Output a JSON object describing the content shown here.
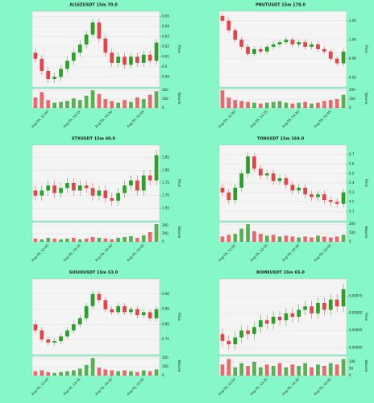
{
  "chart_data": [
    {
      "type": "candlestick",
      "title": "AI16ZUSDT 15m 70.0",
      "ylabel": "Price",
      "volume_label": "Volume",
      "up_color": "#2ca02c",
      "down_color": "#e0474c",
      "grid": true,
      "categories": [
        null,
        null,
        "Aug 05, 12:00",
        null,
        null,
        null,
        null,
        "Aug 05, 13:15",
        null,
        null,
        null,
        null,
        "Aug 05, 14:30",
        null,
        null,
        null,
        null,
        "Aug 05, 15:45",
        null,
        null
      ],
      "ohlc": [
        [
          0.614,
          0.618,
          0.604,
          0.608
        ],
        [
          0.608,
          0.612,
          0.592,
          0.596
        ],
        [
          0.596,
          0.6,
          0.584,
          0.588
        ],
        [
          0.588,
          0.594,
          0.584,
          0.59
        ],
        [
          0.59,
          0.602,
          0.586,
          0.598
        ],
        [
          0.598,
          0.61,
          0.594,
          0.606
        ],
        [
          0.606,
          0.618,
          0.602,
          0.614
        ],
        [
          0.614,
          0.626,
          0.61,
          0.622
        ],
        [
          0.622,
          0.636,
          0.618,
          0.632
        ],
        [
          0.632,
          0.648,
          0.628,
          0.644
        ],
        [
          0.644,
          0.648,
          0.624,
          0.628
        ],
        [
          0.628,
          0.632,
          0.61,
          0.614
        ],
        [
          0.614,
          0.618,
          0.6,
          0.604
        ],
        [
          0.604,
          0.614,
          0.6,
          0.61
        ],
        [
          0.61,
          0.614,
          0.598,
          0.602
        ],
        [
          0.602,
          0.614,
          0.598,
          0.61
        ],
        [
          0.61,
          0.614,
          0.6,
          0.604
        ],
        [
          0.604,
          0.616,
          0.6,
          0.612
        ],
        [
          0.612,
          0.616,
          0.602,
          0.606
        ],
        [
          0.606,
          0.628,
          0.602,
          0.624
        ]
      ],
      "volume": [
        120,
        180,
        90,
        60,
        70,
        80,
        110,
        90,
        140,
        200,
        160,
        100,
        80,
        60,
        90,
        70,
        120,
        100,
        150,
        190
      ],
      "ylim": [
        0.58,
        0.655
      ],
      "yticks": [
        0.59,
        0.6,
        0.61,
        0.62,
        0.63,
        0.64,
        0.65
      ],
      "volume_lim": [
        0,
        220
      ],
      "volume_ticks": [
        0,
        100,
        200
      ]
    },
    {
      "type": "candlestick",
      "title": "PNUTUSDT 15m 178.0",
      "ylabel": "Price",
      "volume_label": "Volume",
      "up_color": "#2ca02c",
      "down_color": "#e0474c",
      "grid": true,
      "categories": [
        null,
        null,
        "Aug 05, 12:00",
        null,
        null,
        null,
        null,
        "Aug 05, 13:15",
        null,
        null,
        null,
        null,
        "Aug 05, 14:30",
        null,
        null,
        null,
        null,
        "Aug 05, 15:45",
        null,
        null
      ],
      "ohlc": [
        [
          1.05,
          1.056,
          1.034,
          1.04
        ],
        [
          1.04,
          1.046,
          1.014,
          1.02
        ],
        [
          1.02,
          1.026,
          0.994,
          1.0
        ],
        [
          1.0,
          1.006,
          0.979,
          0.985
        ],
        [
          0.985,
          0.991,
          0.964,
          0.97
        ],
        [
          0.97,
          0.986,
          0.964,
          0.98
        ],
        [
          0.98,
          0.986,
          0.969,
          0.975
        ],
        [
          0.975,
          0.991,
          0.969,
          0.985
        ],
        [
          0.985,
          0.996,
          0.979,
          0.99
        ],
        [
          0.99,
          1.001,
          0.984,
          0.995
        ],
        [
          0.995,
          1.006,
          0.989,
          1.0
        ],
        [
          1.0,
          1.006,
          0.984,
          0.99
        ],
        [
          0.99,
          1.001,
          0.984,
          0.995
        ],
        [
          0.995,
          1.001,
          0.979,
          0.985
        ],
        [
          0.985,
          0.996,
          0.979,
          0.99
        ],
        [
          0.99,
          0.996,
          0.974,
          0.98
        ],
        [
          0.98,
          0.986,
          0.969,
          0.975
        ],
        [
          0.975,
          0.981,
          0.954,
          0.96
        ],
        [
          0.96,
          0.966,
          0.944,
          0.95
        ],
        [
          0.95,
          0.981,
          0.944,
          0.975
        ]
      ],
      "volume": [
        200,
        120,
        90,
        80,
        70,
        60,
        50,
        60,
        70,
        80,
        60,
        50,
        60,
        70,
        50,
        60,
        80,
        90,
        100,
        150
      ],
      "ylim": [
        0.9,
        1.06
      ],
      "yticks": [
        {
          "value": 0.92,
          "label": "0.92"
        },
        {
          "value": 0.96,
          "label": "0.96"
        },
        {
          "value": 1.0,
          "label": "1.00"
        },
        {
          "value": 1.04,
          "label": "1.04"
        }
      ],
      "volume_lim": [
        0,
        220
      ],
      "volume_ticks": [
        0,
        100,
        200
      ]
    },
    {
      "type": "candlestick",
      "title": "STXUSDT 15m 60.0",
      "ylabel": "Price",
      "volume_label": "Volume",
      "up_color": "#2ca02c",
      "down_color": "#e0474c",
      "grid": true,
      "categories": [
        null,
        null,
        "Aug 05, 12:00",
        null,
        null,
        null,
        null,
        "Aug 05, 13:15",
        null,
        null,
        null,
        null,
        "Aug 05, 14:30",
        null,
        null,
        null,
        null,
        "Aug 05, 15:45",
        null,
        null
      ],
      "ohlc": [
        [
          1.72,
          1.74,
          1.68,
          1.7
        ],
        [
          1.7,
          1.74,
          1.68,
          1.72
        ],
        [
          1.72,
          1.76,
          1.7,
          1.74
        ],
        [
          1.74,
          1.76,
          1.69,
          1.71
        ],
        [
          1.71,
          1.75,
          1.69,
          1.73
        ],
        [
          1.73,
          1.77,
          1.71,
          1.75
        ],
        [
          1.75,
          1.77,
          1.7,
          1.72
        ],
        [
          1.72,
          1.76,
          1.7,
          1.74
        ],
        [
          1.74,
          1.76,
          1.71,
          1.73
        ],
        [
          1.73,
          1.75,
          1.68,
          1.7
        ],
        [
          1.7,
          1.74,
          1.68,
          1.72
        ],
        [
          1.72,
          1.74,
          1.67,
          1.69
        ],
        [
          1.69,
          1.71,
          1.66,
          1.68
        ],
        [
          1.68,
          1.73,
          1.66,
          1.71
        ],
        [
          1.71,
          1.76,
          1.69,
          1.74
        ],
        [
          1.74,
          1.78,
          1.72,
          1.76
        ],
        [
          1.76,
          1.78,
          1.7,
          1.72
        ],
        [
          1.72,
          1.8,
          1.7,
          1.78
        ],
        [
          1.78,
          1.8,
          1.74,
          1.76
        ],
        [
          1.76,
          1.88,
          1.74,
          1.86
        ]
      ],
      "volume": [
        40,
        30,
        50,
        40,
        30,
        40,
        50,
        30,
        40,
        60,
        50,
        40,
        30,
        50,
        60,
        70,
        50,
        80,
        120,
        220
      ],
      "ylim": [
        1.6,
        1.9
      ],
      "yticks": [
        1.65,
        {
          "value": 1.7,
          "label": "1.70"
        },
        1.75,
        {
          "value": 1.8,
          "label": "1.80"
        },
        1.85
      ],
      "volume_lim": [
        0,
        240
      ],
      "volume_ticks": [
        0,
        100,
        200
      ]
    },
    {
      "type": "candlestick",
      "title": "TONUSDT 15m 164.0",
      "ylabel": "Price",
      "volume_label": "Volume",
      "up_color": "#2ca02c",
      "down_color": "#e0474c",
      "grid": true,
      "categories": [
        null,
        null,
        "Aug 05, 12:00",
        null,
        null,
        null,
        null,
        "Aug 05, 13:15",
        null,
        null,
        null,
        null,
        "Aug 05, 14:30",
        null,
        null,
        null,
        null,
        "Aug 05, 15:45",
        null,
        null
      ],
      "ohlc": [
        [
          5.35,
          5.39,
          5.26,
          5.3
        ],
        [
          5.3,
          5.34,
          5.18,
          5.22
        ],
        [
          5.22,
          5.39,
          5.18,
          5.35
        ],
        [
          5.35,
          5.54,
          5.31,
          5.5
        ],
        [
          5.5,
          5.72,
          5.46,
          5.68
        ],
        [
          5.68,
          5.72,
          5.51,
          5.55
        ],
        [
          5.55,
          5.59,
          5.44,
          5.48
        ],
        [
          5.48,
          5.54,
          5.44,
          5.5
        ],
        [
          5.5,
          5.54,
          5.38,
          5.42
        ],
        [
          5.42,
          5.49,
          5.38,
          5.45
        ],
        [
          5.45,
          5.49,
          5.34,
          5.38
        ],
        [
          5.38,
          5.42,
          5.28,
          5.32
        ],
        [
          5.32,
          5.39,
          5.28,
          5.35
        ],
        [
          5.35,
          5.39,
          5.24,
          5.28
        ],
        [
          5.28,
          5.32,
          5.21,
          5.25
        ],
        [
          5.25,
          5.32,
          5.21,
          5.28
        ],
        [
          5.28,
          5.32,
          5.18,
          5.22
        ],
        [
          5.22,
          5.26,
          5.16,
          5.2
        ],
        [
          5.2,
          5.24,
          5.14,
          5.18
        ],
        [
          5.18,
          5.34,
          5.14,
          5.3
        ]
      ],
      "volume": [
        60,
        80,
        90,
        150,
        200,
        120,
        90,
        70,
        80,
        60,
        70,
        60,
        50,
        60,
        50,
        70,
        60,
        50,
        60,
        80
      ],
      "ylim": [
        5.0,
        5.8
      ],
      "yticks": [
        5.1,
        5.2,
        5.3,
        5.4,
        5.5,
        5.6,
        5.7
      ],
      "volume_lim": [
        0,
        220
      ],
      "volume_ticks": [
        0,
        100,
        200
      ]
    },
    {
      "type": "candlestick",
      "title": "SUSHIUSDT 15m 53.0",
      "ylabel": "Price",
      "volume_label": "Volume",
      "up_color": "#2ca02c",
      "down_color": "#e0474c",
      "grid": true,
      "categories": [
        null,
        null,
        "Aug 05, 12:00",
        null,
        null,
        null,
        null,
        "Aug 05, 13:15",
        null,
        null,
        null,
        null,
        "Aug 05, 14:30",
        null,
        null,
        null,
        null,
        "Aug 05, 15:45",
        null,
        null
      ],
      "ohlc": [
        [
          0.8,
          0.81,
          0.77,
          0.78
        ],
        [
          0.78,
          0.79,
          0.74,
          0.75
        ],
        [
          0.75,
          0.76,
          0.73,
          0.74
        ],
        [
          0.74,
          0.755,
          0.73,
          0.745
        ],
        [
          0.745,
          0.77,
          0.735,
          0.76
        ],
        [
          0.76,
          0.79,
          0.75,
          0.78
        ],
        [
          0.78,
          0.81,
          0.77,
          0.8
        ],
        [
          0.8,
          0.83,
          0.79,
          0.82
        ],
        [
          0.82,
          0.87,
          0.81,
          0.86
        ],
        [
          0.86,
          0.91,
          0.85,
          0.9
        ],
        [
          0.9,
          0.91,
          0.87,
          0.88
        ],
        [
          0.88,
          0.89,
          0.84,
          0.85
        ],
        [
          0.85,
          0.86,
          0.83,
          0.84
        ],
        [
          0.84,
          0.87,
          0.83,
          0.86
        ],
        [
          0.86,
          0.87,
          0.83,
          0.84
        ],
        [
          0.84,
          0.86,
          0.83,
          0.85
        ],
        [
          0.85,
          0.86,
          0.82,
          0.83
        ],
        [
          0.83,
          0.85,
          0.82,
          0.84
        ],
        [
          0.84,
          0.85,
          0.81,
          0.82
        ],
        [
          0.82,
          0.86,
          0.81,
          0.85
        ]
      ],
      "volume": [
        50,
        60,
        40,
        30,
        40,
        50,
        60,
        80,
        120,
        200,
        90,
        70,
        60,
        50,
        60,
        50,
        40,
        60,
        50,
        70
      ],
      "ylim": [
        0.7,
        0.95
      ],
      "yticks": [
        0.75,
        {
          "value": 0.8,
          "label": "0.80"
        },
        0.85,
        {
          "value": 0.9,
          "label": "0.90"
        }
      ],
      "volume_lim": [
        0,
        220
      ],
      "volume_ticks": [
        0,
        100,
        200
      ]
    },
    {
      "type": "candlestick",
      "title": "BOMEUSDT 15m 65.0",
      "ylabel": "Price",
      "volume_label": "Volume",
      "up_color": "#2ca02c",
      "down_color": "#e0474c",
      "grid": true,
      "categories": [
        null,
        null,
        "Aug 05, 12:00",
        null,
        null,
        null,
        null,
        "Aug 05, 13:15",
        null,
        null,
        null,
        null,
        "Aug 05, 14:30",
        null,
        null,
        null,
        null,
        "Aug 05, 15:45",
        null,
        null
      ],
      "ohlc": [
        [
          0.0092,
          0.00928,
          0.00902,
          0.0091
        ],
        [
          0.0091,
          0.00918,
          0.00897,
          0.00905
        ],
        [
          0.00905,
          0.00923,
          0.00897,
          0.00915
        ],
        [
          0.00915,
          0.00933,
          0.00907,
          0.00925
        ],
        [
          0.00925,
          0.00933,
          0.00912,
          0.0092
        ],
        [
          0.0092,
          0.00938,
          0.00912,
          0.0093
        ],
        [
          0.0093,
          0.00948,
          0.00922,
          0.0094
        ],
        [
          0.0094,
          0.00948,
          0.00927,
          0.00935
        ],
        [
          0.00935,
          0.00953,
          0.00927,
          0.00945
        ],
        [
          0.00945,
          0.00953,
          0.00932,
          0.0094
        ],
        [
          0.0094,
          0.00958,
          0.00932,
          0.0095
        ],
        [
          0.0095,
          0.00958,
          0.00937,
          0.00945
        ],
        [
          0.00945,
          0.00963,
          0.00937,
          0.00955
        ],
        [
          0.00955,
          0.00968,
          0.00947,
          0.0096
        ],
        [
          0.0096,
          0.00968,
          0.00942,
          0.0095
        ],
        [
          0.0095,
          0.00973,
          0.00942,
          0.00965
        ],
        [
          0.00965,
          0.00973,
          0.00947,
          0.00955
        ],
        [
          0.00955,
          0.00978,
          0.00947,
          0.0097
        ],
        [
          0.0097,
          0.00978,
          0.00952,
          0.0096
        ],
        [
          0.0096,
          0.00993,
          0.00952,
          0.00985
        ]
      ],
      "volume": [
        80,
        120,
        60,
        90,
        70,
        100,
        60,
        80,
        70,
        90,
        60,
        80,
        70,
        90,
        60,
        80,
        70,
        90,
        80,
        120
      ],
      "ylim": [
        0.0089,
        0.01
      ],
      "yticks": [
        {
          "value": 0.009,
          "label": "0.00900"
        },
        {
          "value": 0.00925,
          "label": "0.00925"
        },
        {
          "value": 0.0095,
          "label": "0.00950"
        },
        {
          "value": 0.00975,
          "label": "0.00975"
        }
      ],
      "volume_lim": [
        0,
        140
      ],
      "volume_ticks": [
        0,
        50,
        100
      ]
    }
  ]
}
